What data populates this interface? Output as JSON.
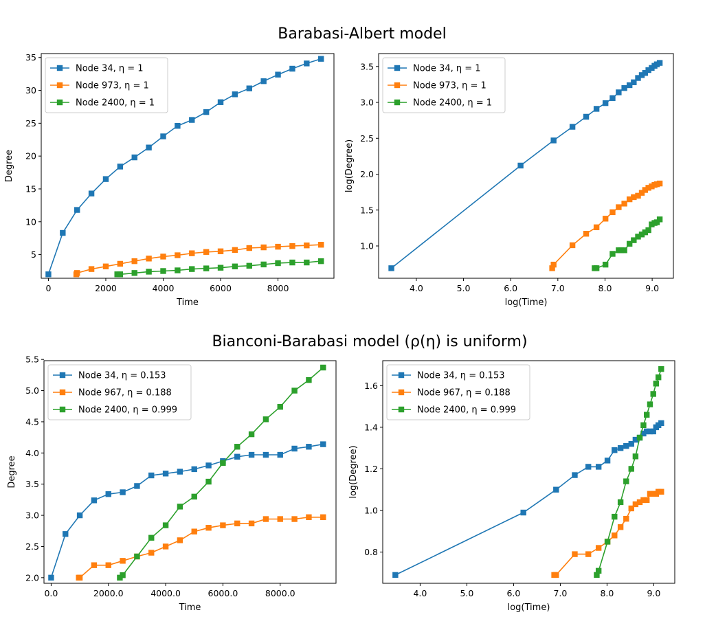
{
  "figure": {
    "top_title": "Barabasi-Albert model",
    "bottom_title": "Bianconi-Barabasi model (ρ(η) is uniform)"
  },
  "colors": {
    "blue": "#1f77b4",
    "orange": "#ff7f0e",
    "green": "#2ca02c"
  },
  "chart_data": [
    {
      "type": "line",
      "xlabel": "Time",
      "ylabel": "Degree",
      "xlim": [
        -250,
        9950
      ],
      "ylim": [
        1.4,
        35.6
      ],
      "xticks": [
        0,
        2000,
        4000,
        6000,
        8000
      ],
      "yticks": [
        5,
        10,
        15,
        20,
        25,
        30,
        35
      ],
      "legend": "top-left",
      "series": [
        {
          "name": "Node 34, η = 1",
          "color": "#1f77b4",
          "x": [
            0,
            500,
            1000,
            1500,
            2000,
            2500,
            3000,
            3500,
            4000,
            4500,
            5000,
            5500,
            6000,
            6500,
            7000,
            7500,
            8000,
            8500,
            9000,
            9500
          ],
          "y": [
            2,
            8.3,
            11.8,
            14.3,
            16.5,
            18.4,
            19.8,
            21.3,
            23,
            24.6,
            25.5,
            26.7,
            28.2,
            29.4,
            30.3,
            31.4,
            32.4,
            33.3,
            34.1,
            34.8
          ]
        },
        {
          "name": "Node 973, η = 1",
          "color": "#ff7f0e",
          "x": [
            973,
            1000,
            1500,
            2000,
            2500,
            3000,
            3500,
            4000,
            4500,
            5000,
            5500,
            6000,
            6500,
            7000,
            7500,
            8000,
            8500,
            9000,
            9500
          ],
          "y": [
            2,
            2.2,
            2.8,
            3.2,
            3.6,
            4,
            4.4,
            4.7,
            4.9,
            5.2,
            5.4,
            5.5,
            5.7,
            6,
            6.1,
            6.2,
            6.3,
            6.4,
            6.5
          ]
        },
        {
          "name": "Node 2400, η = 1",
          "color": "#2ca02c",
          "x": [
            2400,
            2500,
            3000,
            3500,
            4000,
            4500,
            5000,
            5500,
            6000,
            6500,
            7000,
            7500,
            8000,
            8500,
            9000,
            9500
          ],
          "y": [
            2,
            2,
            2.2,
            2.4,
            2.5,
            2.6,
            2.8,
            2.9,
            3,
            3.2,
            3.3,
            3.5,
            3.7,
            3.8,
            3.8,
            4
          ]
        }
      ]
    },
    {
      "type": "line",
      "xlabel": "log(Time)",
      "ylabel": "log(Degree)",
      "xlim": [
        3.2,
        9.45
      ],
      "ylim": [
        0.55,
        3.68
      ],
      "xticks": [
        4,
        5,
        6,
        7,
        8,
        9
      ],
      "yticks": [
        1.0,
        1.5,
        2.0,
        2.5,
        3.0,
        3.5
      ],
      "tick_decimals": 1,
      "legend": "top-left",
      "series": [
        {
          "name": "Node 34, η = 1",
          "color": "#1f77b4",
          "x": [
            3.47,
            6.21,
            6.91,
            7.31,
            7.6,
            7.82,
            8.01,
            8.16,
            8.29,
            8.41,
            8.52,
            8.61,
            8.7,
            8.78,
            8.85,
            8.92,
            8.99,
            9.05,
            9.1,
            9.16
          ],
          "y": [
            0.69,
            2.12,
            2.47,
            2.66,
            2.8,
            2.91,
            2.99,
            3.06,
            3.14,
            3.2,
            3.24,
            3.28,
            3.34,
            3.38,
            3.41,
            3.45,
            3.48,
            3.51,
            3.53,
            3.55
          ]
        },
        {
          "name": "Node 973, η = 1",
          "color": "#ff7f0e",
          "x": [
            6.88,
            6.91,
            7.31,
            7.6,
            7.82,
            8.01,
            8.16,
            8.29,
            8.41,
            8.52,
            8.61,
            8.7,
            8.78,
            8.85,
            8.92,
            8.99,
            9.05,
            9.1,
            9.16
          ],
          "y": [
            0.69,
            0.74,
            1.01,
            1.17,
            1.26,
            1.38,
            1.47,
            1.54,
            1.59,
            1.65,
            1.68,
            1.7,
            1.74,
            1.78,
            1.81,
            1.83,
            1.85,
            1.86,
            1.87
          ]
        },
        {
          "name": "Node 2400, η = 1",
          "color": "#2ca02c",
          "x": [
            7.78,
            7.82,
            8.01,
            8.16,
            8.29,
            8.34,
            8.41,
            8.52,
            8.61,
            8.7,
            8.78,
            8.85,
            8.92,
            8.99,
            9.05,
            9.1,
            9.16
          ],
          "y": [
            0.69,
            0.69,
            0.74,
            0.89,
            0.94,
            0.94,
            0.94,
            1.03,
            1.08,
            1.13,
            1.16,
            1.19,
            1.22,
            1.3,
            1.32,
            1.33,
            1.37
          ]
        }
      ]
    },
    {
      "type": "line",
      "xlabel": "Time",
      "ylabel": "Degree",
      "xlim": [
        -250,
        9950
      ],
      "ylim": [
        1.91,
        5.48
      ],
      "xticks": [
        0,
        2000,
        4000,
        6000,
        8000
      ],
      "yticks": [
        2.0,
        2.5,
        3.0,
        3.5,
        4.0,
        4.5,
        5.0,
        5.5
      ],
      "tick_decimals": 1,
      "legend": "top-left",
      "series": [
        {
          "name": "Node 34, η = 0.153",
          "color": "#1f77b4",
          "x": [
            0,
            500,
            1000,
            1500,
            2000,
            2500,
            3000,
            3500,
            4000,
            4500,
            5000,
            5500,
            6000,
            6500,
            7000,
            7500,
            8000,
            8500,
            9000,
            9500
          ],
          "y": [
            2.0,
            2.7,
            3.0,
            3.24,
            3.34,
            3.37,
            3.47,
            3.64,
            3.67,
            3.7,
            3.74,
            3.8,
            3.87,
            3.94,
            3.97,
            3.97,
            3.97,
            4.07,
            4.1,
            4.14
          ]
        },
        {
          "name": "Node 967, η = 0.188",
          "color": "#ff7f0e",
          "x": [
            967,
            1000,
            1500,
            2000,
            2500,
            3000,
            3500,
            4000,
            4500,
            5000,
            5500,
            6000,
            6500,
            7000,
            7500,
            8000,
            8500,
            9000,
            9500
          ],
          "y": [
            2.0,
            2.0,
            2.2,
            2.2,
            2.27,
            2.34,
            2.4,
            2.5,
            2.6,
            2.74,
            2.8,
            2.84,
            2.87,
            2.87,
            2.94,
            2.94,
            2.94,
            2.97,
            2.97
          ]
        },
        {
          "name": "Node 2400, η = 0.999",
          "color": "#2ca02c",
          "x": [
            2400,
            2500,
            3000,
            3500,
            4000,
            4500,
            5000,
            5500,
            6000,
            6500,
            7000,
            7500,
            8000,
            8500,
            9000,
            9500
          ],
          "y": [
            2.0,
            2.04,
            2.34,
            2.64,
            2.84,
            3.14,
            3.3,
            3.54,
            3.84,
            4.1,
            4.3,
            4.54,
            4.74,
            5.0,
            5.17,
            5.37
          ]
        }
      ]
    },
    {
      "type": "line",
      "xlabel": "log(Time)",
      "ylabel": "log(Degree)",
      "xlim": [
        3.2,
        9.45
      ],
      "ylim": [
        0.65,
        1.72
      ],
      "xticks": [
        4,
        5,
        6,
        7,
        8,
        9
      ],
      "yticks": [
        0.8,
        1.0,
        1.2,
        1.4,
        1.6
      ],
      "tick_decimals": 1,
      "legend": "top-left",
      "series": [
        {
          "name": "Node 34, η = 0.153",
          "color": "#1f77b4",
          "x": [
            3.47,
            6.21,
            6.91,
            7.31,
            7.6,
            7.82,
            8.01,
            8.16,
            8.29,
            8.41,
            8.52,
            8.61,
            8.7,
            8.78,
            8.85,
            8.92,
            8.99,
            9.05,
            9.1,
            9.16
          ],
          "y": [
            0.69,
            0.99,
            1.1,
            1.17,
            1.21,
            1.21,
            1.24,
            1.29,
            1.3,
            1.31,
            1.32,
            1.34,
            1.35,
            1.37,
            1.38,
            1.38,
            1.38,
            1.4,
            1.41,
            1.42
          ]
        },
        {
          "name": "Node 967, η = 0.188",
          "color": "#ff7f0e",
          "x": [
            6.87,
            6.91,
            7.31,
            7.6,
            7.82,
            8.01,
            8.16,
            8.29,
            8.41,
            8.52,
            8.61,
            8.7,
            8.78,
            8.85,
            8.92,
            8.99,
            9.05,
            9.1,
            9.16
          ],
          "y": [
            0.69,
            0.69,
            0.79,
            0.79,
            0.82,
            0.85,
            0.88,
            0.92,
            0.96,
            1.01,
            1.03,
            1.04,
            1.05,
            1.05,
            1.08,
            1.08,
            1.08,
            1.09,
            1.09
          ]
        },
        {
          "name": "Node 2400, η = 0.999",
          "color": "#2ca02c",
          "x": [
            7.78,
            7.82,
            8.01,
            8.16,
            8.29,
            8.41,
            8.52,
            8.61,
            8.7,
            8.78,
            8.85,
            8.92,
            8.99,
            9.05,
            9.1,
            9.16
          ],
          "y": [
            0.69,
            0.71,
            0.85,
            0.97,
            1.04,
            1.14,
            1.2,
            1.26,
            1.35,
            1.41,
            1.46,
            1.51,
            1.56,
            1.61,
            1.64,
            1.68
          ]
        }
      ]
    }
  ]
}
